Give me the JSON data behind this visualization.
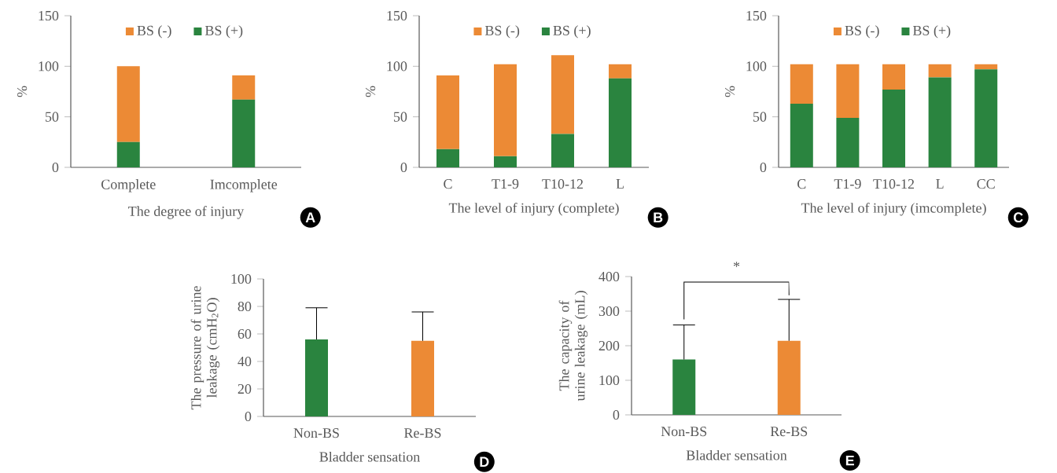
{
  "chart_data": [
    {
      "type": "bar",
      "stacked": true,
      "ylabel": "%",
      "xlabel": "The degree of injury",
      "categories": [
        "Complete",
        "Imcomplete"
      ],
      "series": [
        {
          "name": "BS (+)",
          "color": "#2a843f",
          "values": [
            25,
            67
          ]
        },
        {
          "name": "BS (-)",
          "color": "#ec8a35",
          "values": [
            75,
            24
          ]
        }
      ],
      "ylim": [
        0,
        150
      ],
      "yticks": [
        0,
        50,
        100,
        150
      ],
      "legend": "top",
      "annotations": [
        "A"
      ]
    },
    {
      "type": "bar",
      "stacked": true,
      "ylabel": "%",
      "xlabel": "The level of injury (complete)",
      "categories": [
        "C",
        "T1-9",
        "T10-12",
        "L"
      ],
      "series": [
        {
          "name": "BS (+)",
          "color": "#2a843f",
          "values": [
            18,
            11,
            33,
            88
          ]
        },
        {
          "name": "BS (-)",
          "color": "#ec8a35",
          "values": [
            73,
            91,
            78,
            14
          ]
        }
      ],
      "ylim": [
        0,
        150
      ],
      "yticks": [
        0,
        50,
        100,
        150
      ],
      "legend": "top",
      "annotations": [
        "B"
      ]
    },
    {
      "type": "bar",
      "stacked": true,
      "ylabel": "%",
      "xlabel": "The level of injury (imcomplete)",
      "categories": [
        "C",
        "T1-9",
        "T10-12",
        "L",
        "CC"
      ],
      "series": [
        {
          "name": "BS (+)",
          "color": "#2a843f",
          "values": [
            63,
            49,
            77,
            89,
            97
          ]
        },
        {
          "name": "BS (-)",
          "color": "#ec8a35",
          "values": [
            39,
            53,
            25,
            13,
            5
          ]
        }
      ],
      "ylim": [
        0,
        150
      ],
      "yticks": [
        0,
        50,
        100,
        150
      ],
      "legend": "top",
      "annotations": [
        "C"
      ]
    },
    {
      "type": "bar",
      "ylabel": "The pressure of urine leakage (cmH$_{2}$O)",
      "xlabel": "Bladder sensation",
      "categories": [
        "Non-BS",
        "Re-BS"
      ],
      "values": [
        56,
        55
      ],
      "errors": [
        [
          56,
          79
        ],
        [
          55,
          76
        ]
      ],
      "colors": [
        "#2a843f",
        "#ec8a35"
      ],
      "ylim": [
        0,
        100
      ],
      "yticks": [
        0,
        20,
        40,
        60,
        80,
        100
      ],
      "annotations": [
        "D"
      ]
    },
    {
      "type": "bar",
      "ylabel": "The capacity of urine leakage (mL)",
      "xlabel": "Bladder sensation",
      "categories": [
        "Non-BS",
        "Re-BS"
      ],
      "values": [
        160,
        214
      ],
      "errors": [
        [
          160,
          260
        ],
        [
          214,
          334
        ]
      ],
      "colors": [
        "#2a843f",
        "#ec8a35"
      ],
      "ylim": [
        0,
        400
      ],
      "yticks": [
        0,
        100,
        200,
        300,
        400
      ],
      "annotations": [
        "*",
        "E"
      ]
    }
  ]
}
